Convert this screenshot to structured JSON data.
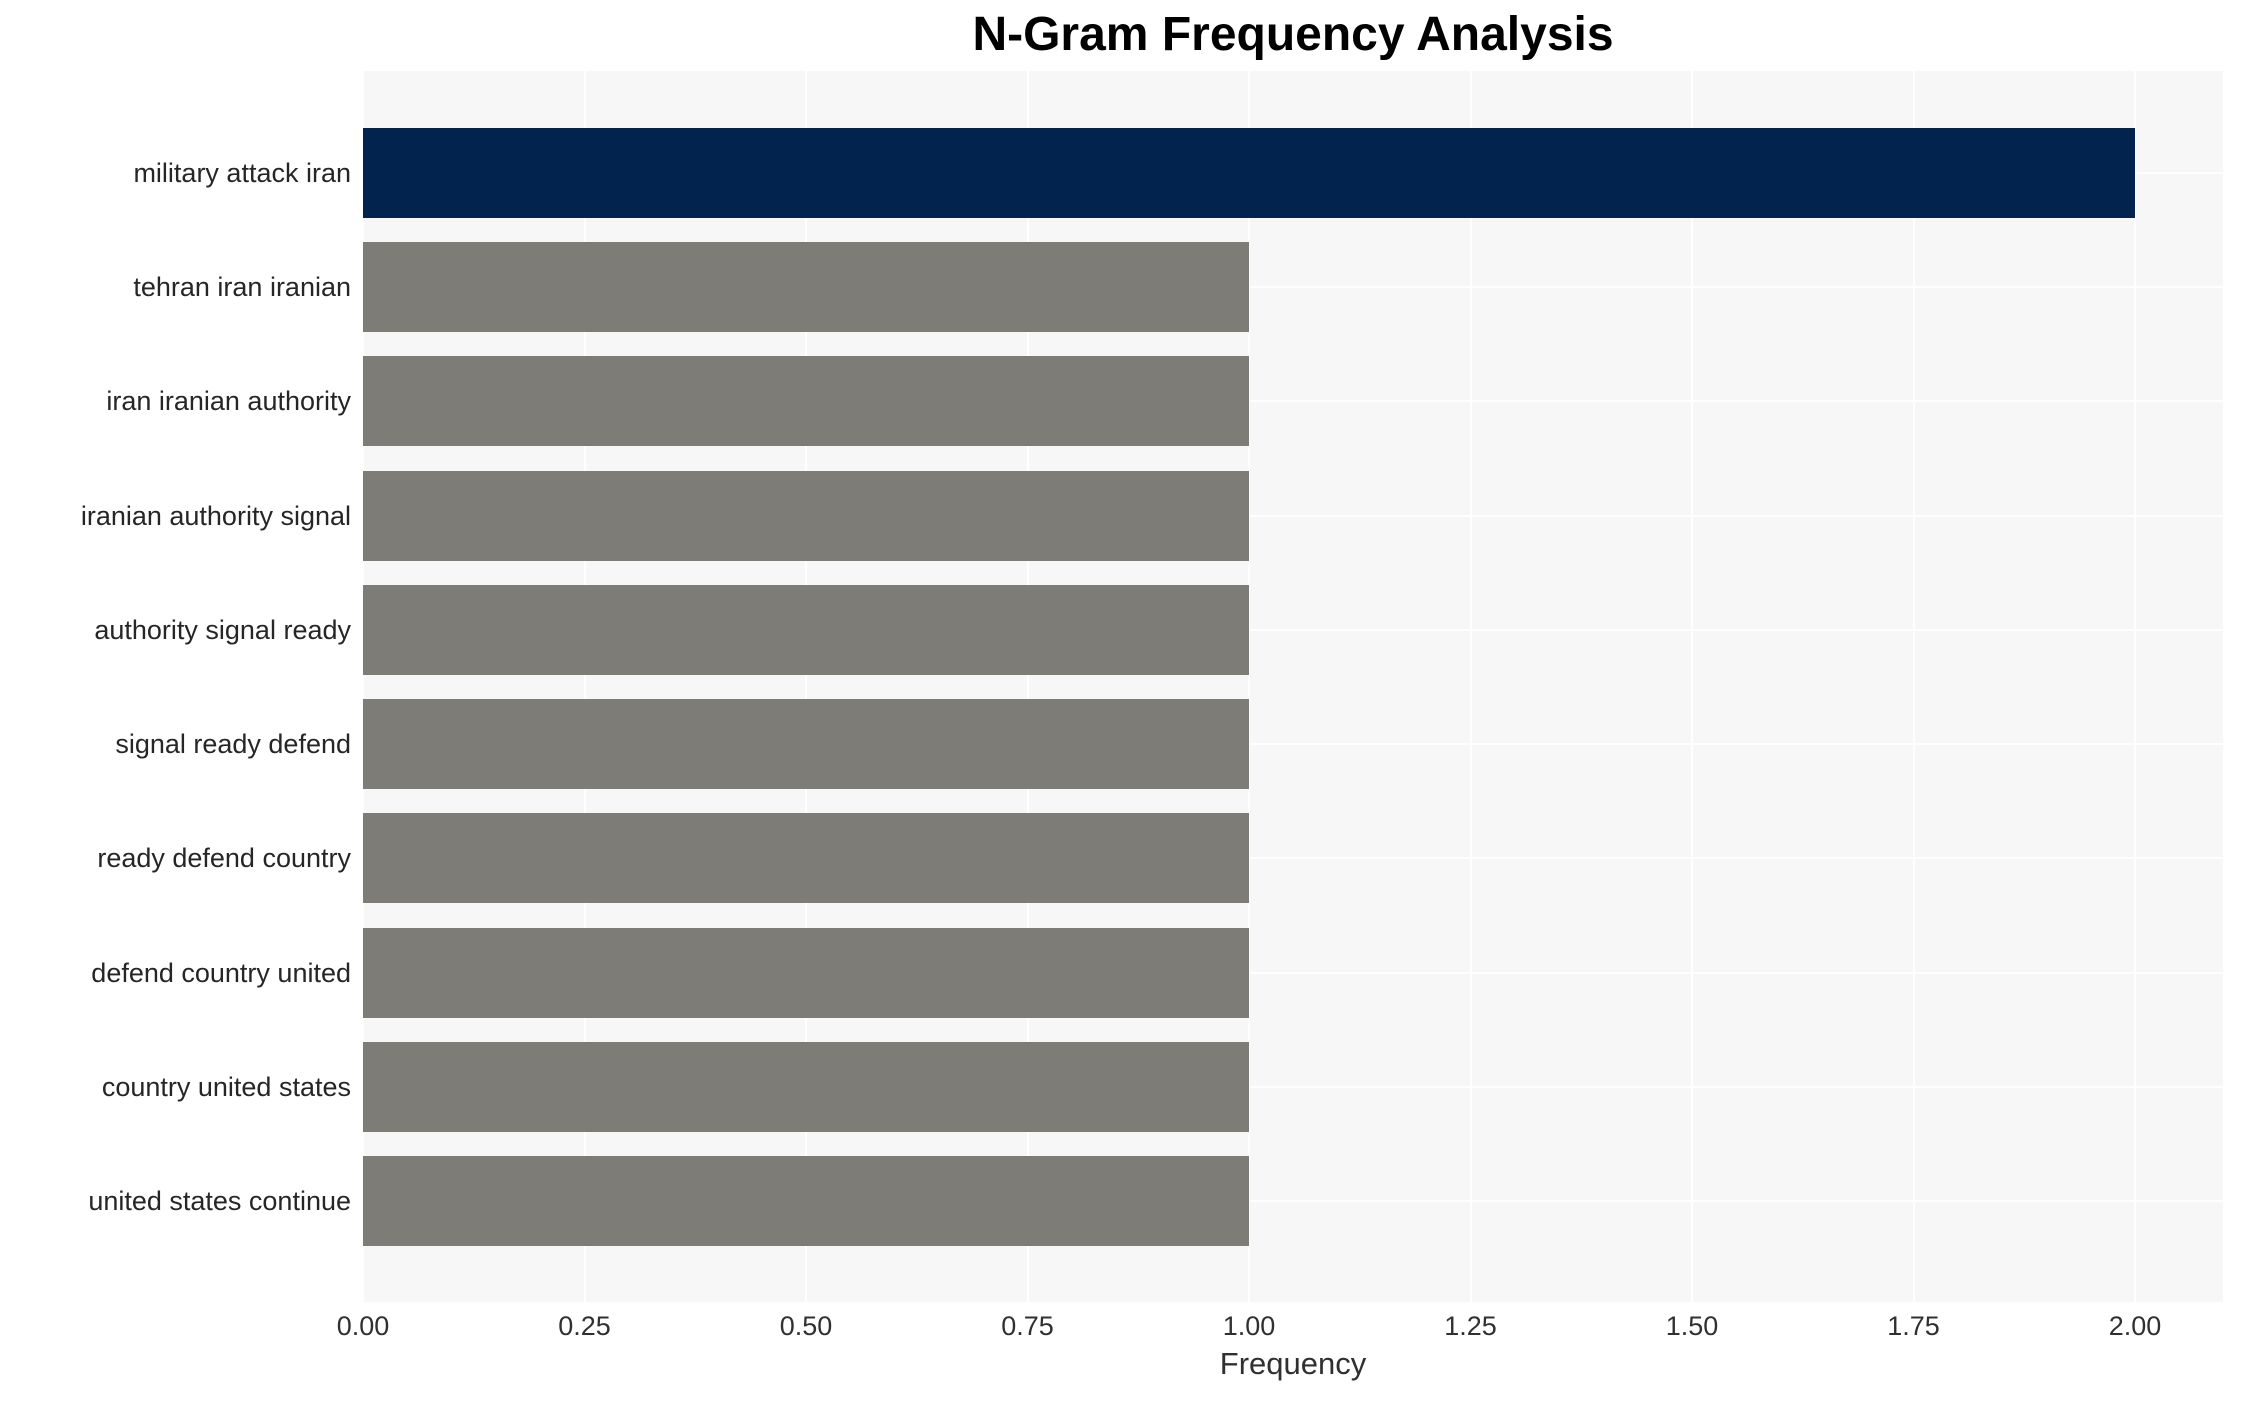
{
  "title": "N-Gram Frequency Analysis",
  "chart_data": {
    "type": "bar",
    "orientation": "horizontal",
    "title": "N-Gram Frequency Analysis",
    "xlabel": "Frequency",
    "ylabel": "",
    "categories": [
      "military attack iran",
      "tehran iran iranian",
      "iran iranian authority",
      "iranian authority signal",
      "authority signal ready",
      "signal ready defend",
      "ready defend country",
      "defend country united",
      "country united states",
      "united states continue"
    ],
    "values": [
      2,
      1,
      1,
      1,
      1,
      1,
      1,
      1,
      1,
      1
    ],
    "xlim": [
      0,
      2.099
    ],
    "xticks": [
      0,
      0.25,
      0.5,
      0.75,
      1.0,
      1.25,
      1.5,
      1.75,
      2.0
    ],
    "xtick_labels": [
      "0.00",
      "0.25",
      "0.50",
      "0.75",
      "1.00",
      "1.25",
      "1.50",
      "1.75",
      "2.00"
    ],
    "grid": true,
    "legend": false,
    "colors": {
      "highlight_bar": "#02234d",
      "default_bar": "#7e7c77",
      "plot_background": "#f7f7f7",
      "grid_line": "#ffffff",
      "figure_background": "#ffffff",
      "text": "#262626"
    }
  }
}
